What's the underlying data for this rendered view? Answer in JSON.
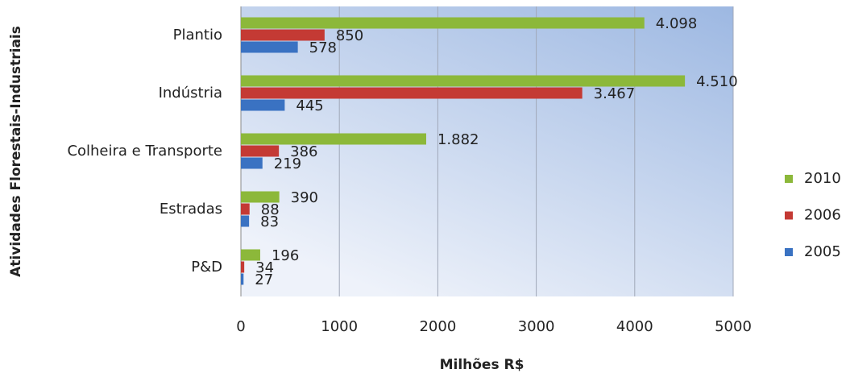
{
  "chart_data": {
    "type": "hbar",
    "categories": [
      "Plantio",
      "Indústria",
      "Colheira e Transporte",
      "Estradas",
      "P&D"
    ],
    "series": [
      {
        "name": "2010",
        "color": "#8cb83a",
        "values": [
          4098,
          4510,
          1882,
          390,
          196
        ],
        "value_labels": [
          "4.098",
          "4.510",
          "1.882",
          "390",
          "196"
        ]
      },
      {
        "name": "2006",
        "color": "#c43a34",
        "values": [
          850,
          3467,
          386,
          88,
          34
        ],
        "value_labels": [
          "850",
          "3.467",
          "386",
          "88",
          "34"
        ]
      },
      {
        "name": "2005",
        "color": "#3a72c2",
        "values": [
          578,
          445,
          219,
          83,
          27
        ],
        "value_labels": [
          "578",
          "445",
          "219",
          "83",
          "27"
        ]
      }
    ],
    "xlim": [
      0,
      5000
    ],
    "xticks": [
      0,
      1000,
      2000,
      3000,
      4000,
      5000
    ],
    "xlabel": "Milhões R$",
    "ylabel": "Atividades Florestais-Industriais",
    "grid": true,
    "legend": "right"
  }
}
